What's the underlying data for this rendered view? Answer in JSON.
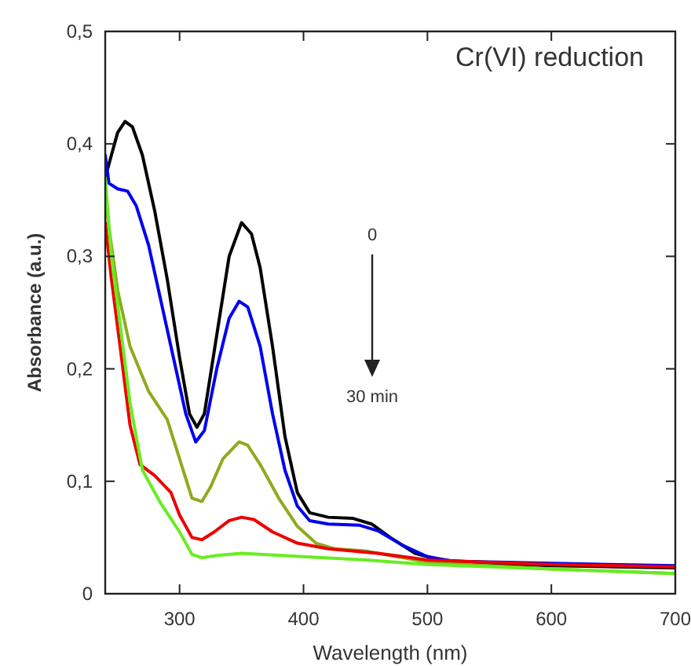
{
  "chart_data": {
    "type": "line",
    "xlabel": "Wavelength (nm)",
    "ylabel": "Absorbance (a.u.)",
    "annotations": [
      "Cr(VI) reduction",
      "0",
      "30 min"
    ],
    "xlim": [
      240,
      700
    ],
    "xticks": [
      300,
      400,
      500,
      600,
      700
    ],
    "ylim": [
      0,
      0.5
    ],
    "yticks": [
      {
        "value": 0,
        "label": "0"
      },
      {
        "value": 0.1,
        "label": "0,1"
      },
      {
        "value": 0.2,
        "label": "0,2"
      },
      {
        "value": 0.3,
        "label": "0,3"
      },
      {
        "value": 0.4,
        "label": "0,4"
      },
      {
        "value": 0.5,
        "label": "0,5"
      }
    ],
    "grid": false,
    "marker": "none",
    "line_style": "solid",
    "series": [
      {
        "color": "#000000",
        "x": [
          240,
          245,
          250,
          256,
          262,
          270,
          280,
          290,
          300,
          308,
          314,
          320,
          330,
          340,
          350,
          358,
          365,
          375,
          385,
          395,
          405,
          420,
          440,
          455,
          470,
          490,
          510,
          550,
          600,
          650,
          700
        ],
        "values": [
          0.37,
          0.39,
          0.41,
          0.42,
          0.415,
          0.39,
          0.34,
          0.28,
          0.21,
          0.16,
          0.148,
          0.16,
          0.23,
          0.3,
          0.33,
          0.32,
          0.29,
          0.22,
          0.14,
          0.09,
          0.072,
          0.068,
          0.067,
          0.062,
          0.05,
          0.036,
          0.03,
          0.027,
          0.025,
          0.024,
          0.023
        ]
      },
      {
        "color": "#0000ee",
        "x": [
          240,
          243,
          250,
          258,
          265,
          275,
          285,
          295,
          305,
          313,
          320,
          330,
          340,
          348,
          355,
          365,
          375,
          385,
          395,
          405,
          420,
          445,
          460,
          480,
          500,
          520,
          600,
          700
        ],
        "values": [
          0.39,
          0.365,
          0.36,
          0.358,
          0.345,
          0.31,
          0.26,
          0.21,
          0.16,
          0.135,
          0.145,
          0.2,
          0.245,
          0.26,
          0.255,
          0.22,
          0.16,
          0.11,
          0.078,
          0.065,
          0.062,
          0.061,
          0.056,
          0.043,
          0.033,
          0.029,
          0.027,
          0.025
        ]
      },
      {
        "color": "#8faa1e",
        "x": [
          240,
          250,
          260,
          275,
          290,
          300,
          310,
          318,
          325,
          335,
          348,
          355,
          365,
          380,
          395,
          410,
          425,
          450,
          500,
          550,
          600,
          650,
          700
        ],
        "values": [
          0.35,
          0.27,
          0.22,
          0.18,
          0.155,
          0.12,
          0.085,
          0.082,
          0.095,
          0.12,
          0.135,
          0.132,
          0.115,
          0.085,
          0.06,
          0.045,
          0.04,
          0.038,
          0.028,
          0.025,
          0.022,
          0.02,
          0.018
        ]
      },
      {
        "color": "#ee0000",
        "x": [
          240,
          245,
          252,
          260,
          268,
          280,
          293,
          300,
          310,
          318,
          328,
          340,
          350,
          360,
          375,
          395,
          420,
          460,
          500,
          550,
          600,
          700
        ],
        "values": [
          0.33,
          0.28,
          0.22,
          0.15,
          0.115,
          0.105,
          0.09,
          0.07,
          0.05,
          0.048,
          0.055,
          0.065,
          0.068,
          0.066,
          0.055,
          0.045,
          0.04,
          0.036,
          0.03,
          0.028,
          0.026,
          0.024
        ]
      },
      {
        "color": "#66ee22",
        "x": [
          240,
          245,
          252,
          260,
          270,
          285,
          300,
          310,
          318,
          330,
          350,
          400,
          450,
          500,
          600,
          700
        ],
        "values": [
          0.37,
          0.3,
          0.24,
          0.17,
          0.11,
          0.08,
          0.055,
          0.035,
          0.032,
          0.034,
          0.036,
          0.033,
          0.03,
          0.026,
          0.022,
          0.018
        ]
      }
    ]
  }
}
